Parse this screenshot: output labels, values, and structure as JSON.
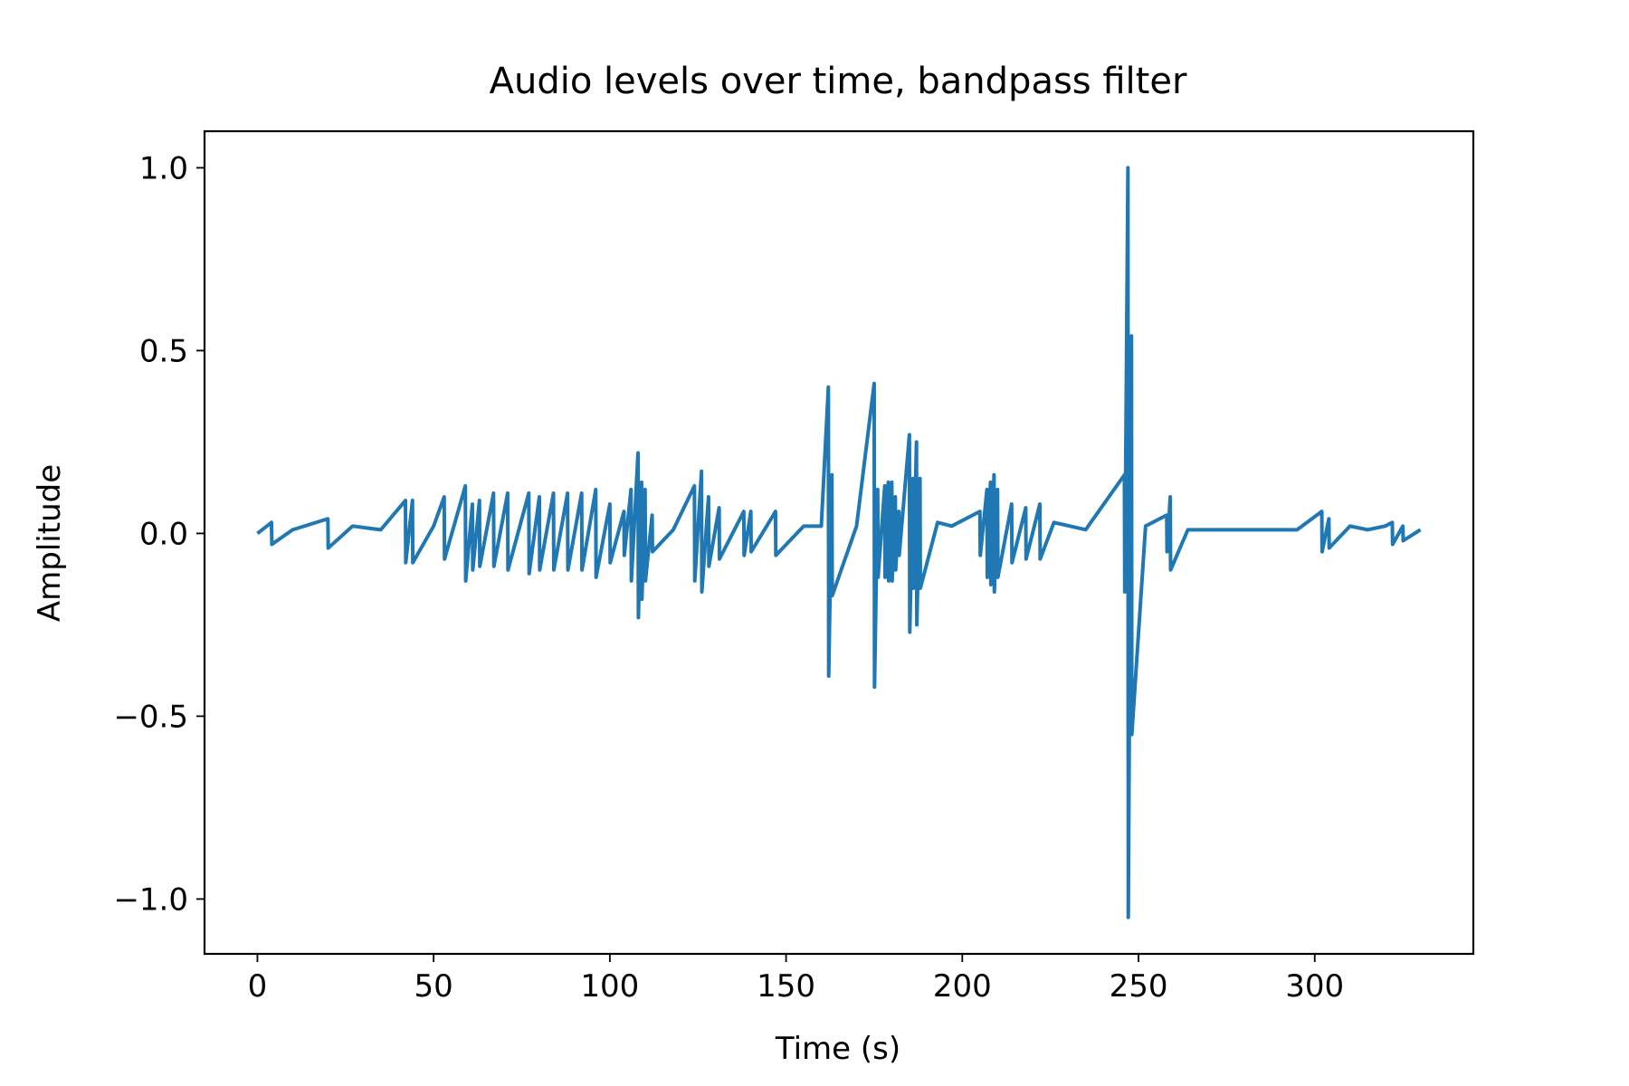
{
  "chart_data": {
    "type": "line",
    "title": "Audio levels over time, bandpass filter",
    "xlabel": "Time (s)",
    "ylabel": "Amplitude",
    "xlim": [
      -15,
      345
    ],
    "ylim": [
      -1.15,
      1.1
    ],
    "xticks": [
      0,
      50,
      100,
      150,
      200,
      250,
      300
    ],
    "yticks": [
      1.0,
      0.5,
      0.0,
      -0.5,
      -1.0
    ],
    "xtick_labels": [
      "0",
      "50",
      "100",
      "150",
      "200",
      "250",
      "300"
    ],
    "ytick_labels": [
      "1.0",
      "0.5",
      "0.0",
      "−0.5",
      "−1.0"
    ],
    "grid": false,
    "series_color": "#1f77b4",
    "series": [
      {
        "x": [
          0,
          4,
          4.1,
          10,
          20,
          20.1,
          27,
          35,
          42,
          42.1,
          44,
          44.1,
          50,
          53,
          53.1,
          59,
          59.1,
          61,
          61.1,
          63,
          63.1,
          67,
          67.1,
          71,
          71.1,
          77,
          77.1,
          80,
          80.1,
          84,
          84.1,
          88,
          88.1,
          92,
          92.1,
          96,
          96.1,
          100,
          100.1,
          104,
          104.1,
          106,
          106.1,
          108,
          108.1,
          109,
          109.1,
          110,
          110.1,
          112,
          112.1,
          118,
          124,
          124.1,
          126,
          126.1,
          128,
          128.1,
          131,
          131.1,
          138,
          138.1,
          140,
          140.1,
          147,
          147.1,
          155,
          160,
          162,
          162.1,
          163,
          163.1,
          170,
          175,
          175.1,
          176,
          176.1,
          178,
          178.1,
          179,
          179.1,
          180,
          180.1,
          181,
          181.1,
          182,
          182.1,
          185,
          185.1,
          186,
          186.1,
          187,
          187.1,
          188,
          188.1,
          193,
          197,
          205,
          205.1,
          207,
          207.1,
          208,
          208.1,
          209,
          209.1,
          210,
          210.1,
          214,
          214.1,
          218,
          218.1,
          222,
          222.1,
          226,
          235,
          246,
          246.1,
          247,
          247.1,
          248,
          248.1,
          252,
          258,
          258.1,
          259,
          259.1,
          264,
          280,
          295,
          302,
          302.1,
          304,
          304.1,
          310,
          315,
          320,
          322,
          322.1,
          325,
          325.1,
          330
        ],
        "y": [
          0,
          0.03,
          -0.03,
          0.01,
          0.04,
          -0.04,
          0.02,
          0.01,
          0.09,
          -0.08,
          0.09,
          -0.08,
          0.02,
          0.1,
          -0.07,
          0.13,
          -0.13,
          0.08,
          -0.1,
          0.09,
          -0.09,
          0.11,
          -0.09,
          0.11,
          -0.1,
          0.11,
          -0.11,
          0.1,
          -0.1,
          0.11,
          -0.1,
          0.11,
          -0.1,
          0.11,
          -0.1,
          0.12,
          -0.12,
          0.08,
          -0.08,
          0.06,
          -0.06,
          0.12,
          -0.13,
          0.22,
          -0.23,
          0.14,
          -0.18,
          0.12,
          -0.13,
          0.05,
          -0.05,
          0.01,
          0.13,
          -0.13,
          0.17,
          -0.16,
          0.1,
          -0.09,
          0.07,
          -0.07,
          0.06,
          -0.06,
          0.06,
          -0.05,
          0.06,
          -0.06,
          0.02,
          0.02,
          0.4,
          -0.39,
          0.16,
          -0.17,
          0.02,
          0.41,
          -0.42,
          0.12,
          -0.12,
          0.13,
          -0.12,
          0.14,
          -0.13,
          0.14,
          -0.13,
          0.1,
          -0.1,
          0.06,
          -0.06,
          0.27,
          -0.27,
          0.15,
          -0.15,
          0.25,
          -0.25,
          0.15,
          -0.15,
          0.03,
          0.02,
          0.06,
          -0.06,
          0.12,
          -0.12,
          0.14,
          -0.14,
          0.16,
          -0.16,
          0.12,
          -0.12,
          0.08,
          -0.08,
          0.07,
          -0.07,
          0.08,
          -0.07,
          0.03,
          0.01,
          0.16,
          -0.16,
          1.0,
          -1.05,
          0.54,
          -0.55,
          0.02,
          0.05,
          -0.05,
          0.1,
          -0.1,
          0.01,
          0.01,
          0.01,
          0.06,
          -0.05,
          0.04,
          -0.04,
          0.02,
          0.01,
          0.02,
          0.03,
          -0.03,
          0.02,
          -0.02,
          0.01
        ]
      }
    ]
  }
}
